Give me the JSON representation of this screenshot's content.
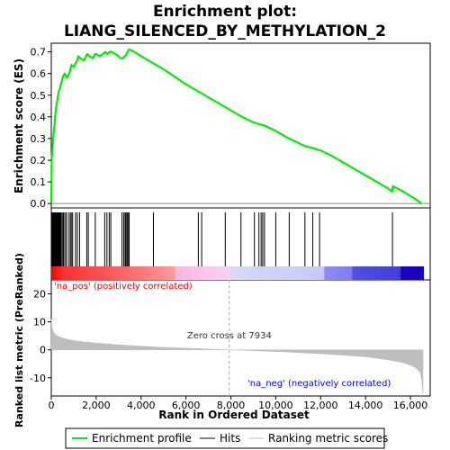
{
  "chart_data": {
    "type": "line",
    "title_line1": "Enrichment plot:",
    "title_line2": "LIANG_SILENCED_BY_METHYLATION_2",
    "xlabel": "Rank in Ordered Dataset",
    "ylabel_top": "Enrichment score (ES)",
    "ylabel_bottom": "Ranked list metric (PreRanked)",
    "xlim": [
      0,
      16600
    ],
    "x_ticks": [
      0,
      2000,
      4000,
      6000,
      8000,
      10000,
      12000,
      14000,
      16000
    ],
    "x_tick_labels": [
      "0",
      "2,000",
      "4,000",
      "6,000",
      "8,000",
      "10,000",
      "12,000",
      "14,000",
      "16,000"
    ],
    "es_ylim": [
      -0.02,
      0.74
    ],
    "es_ticks": [
      0.0,
      0.1,
      0.2,
      0.3,
      0.4,
      0.5,
      0.6,
      0.7
    ],
    "es_tick_labels": [
      "0.0",
      "0.1",
      "0.2",
      "0.3",
      "0.4",
      "0.5",
      "0.6",
      "0.7"
    ],
    "metric_ylim": [
      -16.5,
      25
    ],
    "metric_ticks": [
      20,
      10,
      0,
      -10
    ],
    "metric_tick_labels": [
      "20",
      "10",
      "0",
      "-10"
    ],
    "series": [
      {
        "name": "Enrichment profile",
        "color": "#00ee00",
        "x": [
          0,
          20,
          60,
          100,
          140,
          180,
          220,
          260,
          300,
          340,
          380,
          430,
          480,
          540,
          600,
          700,
          800,
          850,
          900,
          1000,
          1100,
          1150,
          1200,
          1300,
          1450,
          1550,
          1600,
          1700,
          1850,
          1950,
          2000,
          2150,
          2300,
          2400,
          2500,
          2600,
          2700,
          3000,
          3100,
          3200,
          3250,
          3300,
          3350,
          3400,
          3450,
          3500,
          3700,
          4000,
          4500,
          5000,
          5500,
          6000,
          6500,
          7000,
          7500,
          8000,
          8500,
          9000,
          9300,
          9500,
          10000,
          10500,
          11000,
          11300,
          11500,
          11700,
          11800,
          12000,
          12500,
          13000,
          13500,
          14000,
          14500,
          15000,
          15180,
          15220,
          15600,
          16000,
          16300,
          16500
        ],
        "y": [
          0.0,
          0.21,
          0.26,
          0.32,
          0.36,
          0.41,
          0.45,
          0.47,
          0.5,
          0.52,
          0.53,
          0.55,
          0.57,
          0.59,
          0.6,
          0.58,
          0.6,
          0.62,
          0.64,
          0.63,
          0.65,
          0.66,
          0.68,
          0.67,
          0.66,
          0.68,
          0.69,
          0.68,
          0.67,
          0.69,
          0.69,
          0.68,
          0.69,
          0.7,
          0.69,
          0.7,
          0.7,
          0.68,
          0.67,
          0.67,
          0.68,
          0.68,
          0.69,
          0.7,
          0.71,
          0.71,
          0.7,
          0.68,
          0.65,
          0.62,
          0.585,
          0.55,
          0.52,
          0.49,
          0.46,
          0.43,
          0.4,
          0.375,
          0.365,
          0.36,
          0.335,
          0.305,
          0.28,
          0.265,
          0.26,
          0.255,
          0.25,
          0.245,
          0.22,
          0.19,
          0.16,
          0.13,
          0.1,
          0.07,
          0.055,
          0.08,
          0.06,
          0.035,
          0.015,
          0.0
        ]
      },
      {
        "name": "Hits",
        "color": "#000000",
        "x": [
          15,
          35,
          55,
          75,
          95,
          115,
          135,
          160,
          185,
          210,
          240,
          270,
          300,
          330,
          360,
          400,
          440,
          490,
          540,
          600,
          660,
          760,
          840,
          890,
          950,
          1080,
          1160,
          1260,
          1580,
          1650,
          1960,
          2380,
          2480,
          2580,
          2650,
          3150,
          3230,
          3290,
          3330,
          3380,
          3420,
          3470,
          4550,
          6550,
          6700,
          7750,
          8450,
          9050,
          9250,
          9350,
          9420,
          9500,
          10000,
          10600,
          11300,
          11650,
          11950,
          15200
        ]
      },
      {
        "name": "Ranking metric scores",
        "color": "#bebebe",
        "x": [
          0,
          20,
          50,
          100,
          200,
          400,
          600,
          1000,
          1500,
          2000,
          3000,
          4000,
          5000,
          6000,
          7000,
          7934,
          9000,
          10000,
          11000,
          12000,
          13000,
          14000,
          14500,
          15000,
          15500,
          15800,
          16000,
          16200,
          16350,
          16450,
          16500,
          16560
        ],
        "y": [
          11.0,
          9.0,
          7.5,
          6.3,
          5.3,
          4.5,
          4.0,
          3.3,
          2.8,
          2.4,
          1.8,
          1.3,
          0.9,
          0.6,
          0.3,
          0.0,
          -0.3,
          -0.6,
          -1.0,
          -1.4,
          -1.9,
          -2.5,
          -3.0,
          -3.6,
          -4.3,
          -4.9,
          -5.5,
          -6.3,
          -7.2,
          -8.5,
          -10.5,
          -15.8
        ]
      }
    ],
    "annotations": {
      "pos_label": "'na_pos' (positively correlated)",
      "neg_label": "'na_neg' (negatively correlated)",
      "zero_cross": "Zero cross at 7934",
      "zero_cross_x": 7934
    },
    "colors": {
      "pos_label": "#ee0000",
      "neg_label": "#0000dd",
      "zero_line": "#aaaaaa"
    },
    "legend": {
      "placement": "bottom",
      "items": [
        "Enrichment profile",
        "Hits",
        "Ranking metric scores"
      ]
    }
  }
}
